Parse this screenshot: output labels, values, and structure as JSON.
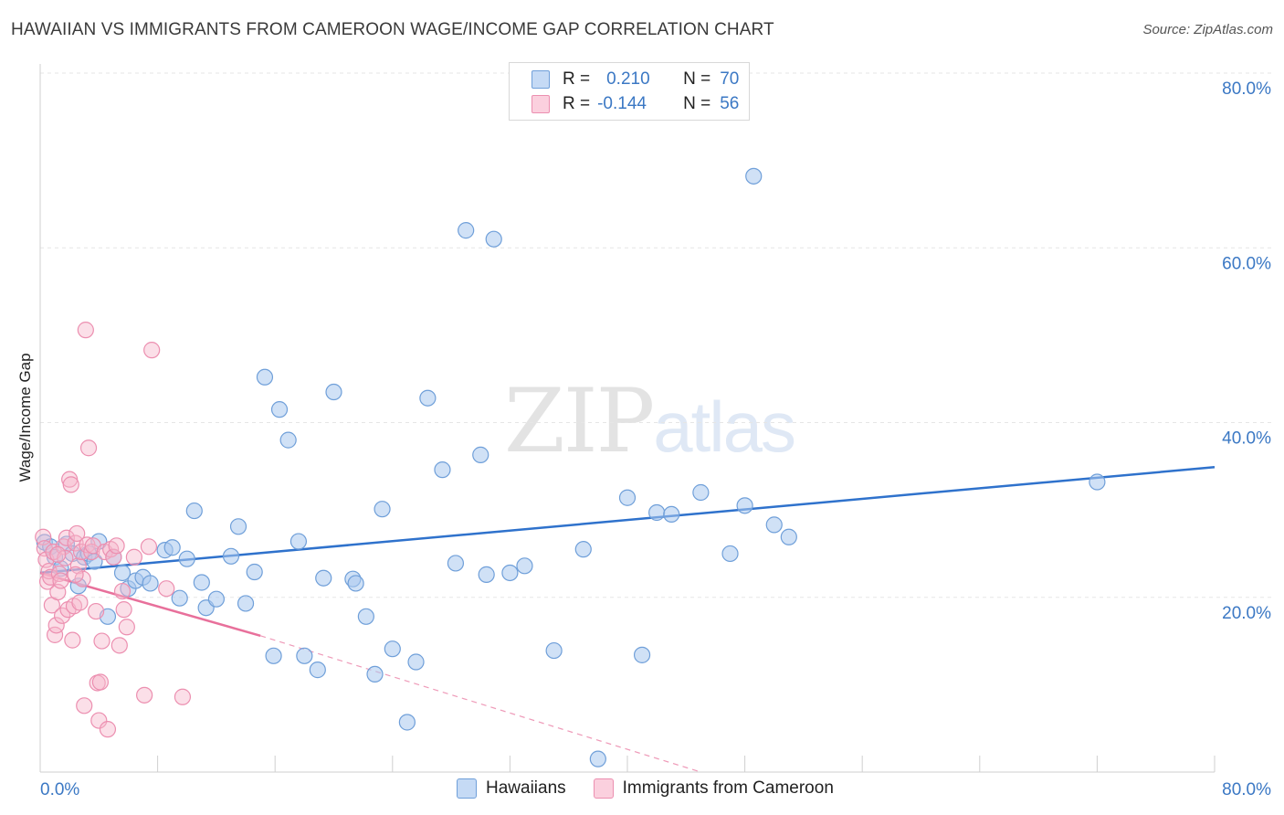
{
  "header": {
    "title": "HAWAIIAN VS IMMIGRANTS FROM CAMEROON WAGE/INCOME GAP CORRELATION CHART",
    "source": "Source: ZipAtlas.com"
  },
  "watermark": {
    "zip": "ZIP",
    "atlas": "atlas"
  },
  "legend_top": {
    "rows": [
      {
        "r_label": "R =",
        "r_value": "0.210",
        "n_label": "N =",
        "n_value": "70"
      },
      {
        "r_label": "R =",
        "r_value": "-0.144",
        "n_label": "N =",
        "n_value": "56"
      }
    ]
  },
  "legend_bottom": {
    "items": [
      "Hawaiians",
      "Immigrants from Cameroon"
    ]
  },
  "colors": {
    "blue_fill": "#a9c8ef",
    "blue_stroke": "#6f9fd9",
    "blue_line": "#2f72cc",
    "pink_fill": "#f7b9cd",
    "pink_stroke": "#ec8fb0",
    "pink_line": "#e8709b",
    "axis_text": "#3b78c4",
    "grid": "#e6e6e6"
  },
  "chart_data": {
    "type": "scatter",
    "title": "HAWAIIAN VS IMMIGRANTS FROM CAMEROON WAGE/INCOME GAP CORRELATION CHART",
    "ylabel": "Wage/Income Gap",
    "xlabel": "",
    "xlim": [
      0,
      80
    ],
    "ylim": [
      0,
      82
    ],
    "x_ticks": [
      "0.0%",
      "80.0%"
    ],
    "y_ticks": [
      "20.0%",
      "40.0%",
      "60.0%",
      "80.0%"
    ],
    "y_tick_values": [
      20,
      40,
      60,
      80
    ],
    "grid": true,
    "legend_placement": "top-center",
    "series": [
      {
        "name": "Hawaiians",
        "r": 0.21,
        "n": 70,
        "trend": {
          "x": [
            0,
            80
          ],
          "y": [
            22.8,
            34.9
          ],
          "style": "solid"
        },
        "points": [
          [
            0.3,
            26.3
          ],
          [
            0.7,
            25.8
          ],
          [
            1.0,
            24.6
          ],
          [
            1.4,
            23.3
          ],
          [
            1.8,
            26.1
          ],
          [
            2.2,
            25.0
          ],
          [
            2.6,
            21.3
          ],
          [
            3.0,
            24.6
          ],
          [
            3.3,
            25.0
          ],
          [
            3.7,
            24.1
          ],
          [
            4.0,
            26.4
          ],
          [
            4.6,
            17.8
          ],
          [
            5.0,
            24.6
          ],
          [
            5.6,
            22.8
          ],
          [
            6.0,
            21.0
          ],
          [
            6.5,
            21.9
          ],
          [
            7.0,
            22.3
          ],
          [
            7.5,
            21.6
          ],
          [
            8.5,
            25.4
          ],
          [
            9.0,
            25.7
          ],
          [
            9.5,
            19.9
          ],
          [
            10.0,
            24.4
          ],
          [
            10.5,
            29.9
          ],
          [
            11.0,
            21.7
          ],
          [
            11.3,
            18.8
          ],
          [
            12.0,
            19.8
          ],
          [
            13.0,
            24.7
          ],
          [
            13.5,
            28.1
          ],
          [
            14.0,
            19.3
          ],
          [
            14.6,
            22.9
          ],
          [
            15.3,
            45.2
          ],
          [
            15.9,
            13.3
          ],
          [
            16.3,
            41.5
          ],
          [
            16.9,
            38.0
          ],
          [
            17.6,
            26.4
          ],
          [
            18.0,
            13.3
          ],
          [
            18.9,
            11.7
          ],
          [
            19.3,
            22.2
          ],
          [
            20.0,
            43.5
          ],
          [
            21.3,
            22.1
          ],
          [
            21.5,
            21.6
          ],
          [
            22.2,
            17.8
          ],
          [
            22.8,
            11.2
          ],
          [
            23.3,
            30.1
          ],
          [
            24.0,
            14.1
          ],
          [
            25.0,
            5.7
          ],
          [
            25.6,
            12.6
          ],
          [
            26.4,
            42.8
          ],
          [
            27.4,
            34.6
          ],
          [
            28.3,
            23.9
          ],
          [
            29.0,
            62.0
          ],
          [
            30.0,
            36.3
          ],
          [
            30.4,
            22.6
          ],
          [
            30.9,
            61.0
          ],
          [
            32.0,
            22.8
          ],
          [
            33.0,
            23.6
          ],
          [
            35.0,
            13.9
          ],
          [
            37.0,
            25.5
          ],
          [
            38.0,
            1.5
          ],
          [
            40.0,
            31.4
          ],
          [
            41.0,
            13.4
          ],
          [
            42.0,
            29.7
          ],
          [
            43.0,
            29.5
          ],
          [
            45.0,
            32.0
          ],
          [
            47.0,
            25.0
          ],
          [
            48.0,
            30.5
          ],
          [
            50.0,
            28.3
          ],
          [
            51.0,
            26.9
          ],
          [
            48.6,
            68.2
          ],
          [
            72.0,
            33.2
          ]
        ]
      },
      {
        "name": "Immigrants from Cameroon",
        "r": -0.144,
        "n": 56,
        "trend_solid": {
          "x": [
            0,
            15
          ],
          "y": [
            22.8,
            15.6
          ]
        },
        "trend_dashed": {
          "x": [
            15,
            45
          ],
          "y": [
            15.6,
            0
          ]
        },
        "points": [
          [
            0.2,
            26.9
          ],
          [
            0.3,
            25.6
          ],
          [
            0.4,
            24.3
          ],
          [
            0.5,
            21.8
          ],
          [
            0.6,
            23.0
          ],
          [
            0.7,
            22.3
          ],
          [
            0.8,
            19.1
          ],
          [
            0.9,
            25.2
          ],
          [
            1.0,
            15.7
          ],
          [
            1.1,
            16.8
          ],
          [
            1.2,
            20.6
          ],
          [
            1.3,
            22.7
          ],
          [
            1.4,
            21.9
          ],
          [
            1.5,
            17.9
          ],
          [
            1.6,
            25.8
          ],
          [
            1.7,
            24.5
          ],
          [
            1.8,
            26.8
          ],
          [
            1.9,
            18.6
          ],
          [
            2.0,
            33.5
          ],
          [
            2.1,
            32.9
          ],
          [
            2.2,
            15.1
          ],
          [
            2.3,
            19.0
          ],
          [
            2.4,
            26.2
          ],
          [
            2.5,
            27.3
          ],
          [
            2.6,
            23.6
          ],
          [
            2.7,
            19.4
          ],
          [
            2.8,
            25.2
          ],
          [
            2.9,
            22.1
          ],
          [
            3.0,
            7.6
          ],
          [
            3.1,
            50.6
          ],
          [
            3.2,
            26.0
          ],
          [
            3.3,
            37.1
          ],
          [
            3.5,
            25.2
          ],
          [
            3.6,
            25.9
          ],
          [
            3.8,
            18.4
          ],
          [
            3.9,
            10.2
          ],
          [
            4.0,
            5.9
          ],
          [
            4.1,
            10.3
          ],
          [
            4.2,
            15.0
          ],
          [
            4.4,
            25.2
          ],
          [
            4.6,
            4.9
          ],
          [
            4.8,
            25.5
          ],
          [
            5.0,
            24.6
          ],
          [
            5.2,
            25.9
          ],
          [
            5.4,
            14.5
          ],
          [
            5.6,
            20.7
          ],
          [
            5.7,
            18.6
          ],
          [
            5.9,
            16.6
          ],
          [
            6.4,
            24.6
          ],
          [
            7.1,
            8.8
          ],
          [
            7.4,
            25.8
          ],
          [
            7.6,
            48.3
          ],
          [
            8.6,
            21.0
          ],
          [
            9.7,
            8.6
          ],
          [
            2.4,
            22.6
          ],
          [
            1.2,
            24.9
          ]
        ]
      }
    ]
  }
}
